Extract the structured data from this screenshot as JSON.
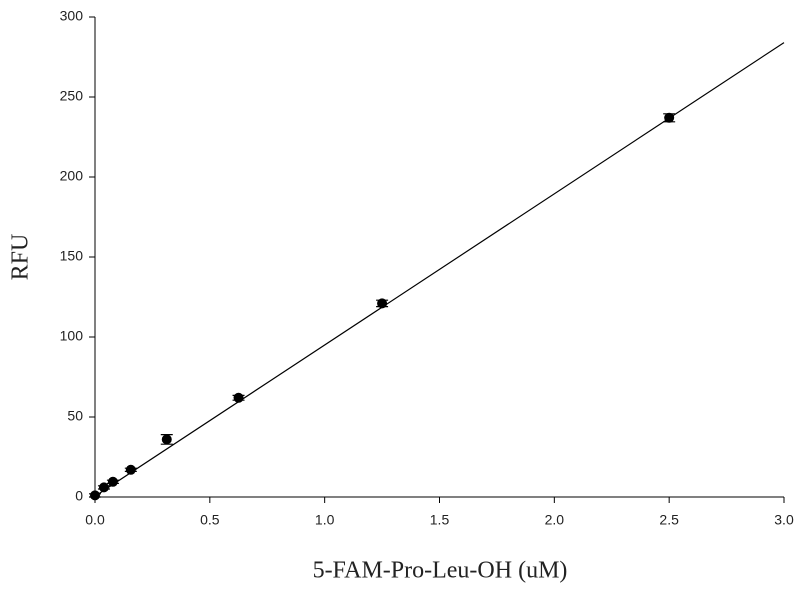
{
  "chart_data": {
    "type": "scatter",
    "xlabel": "5-FAM-Pro-Leu-OH (uM)",
    "ylabel": "RFU",
    "x": [
      0,
      0.039,
      0.078,
      0.156,
      0.3125,
      0.625,
      1.25,
      2.5
    ],
    "values": [
      1,
      6,
      9.5,
      17,
      36,
      62,
      121,
      237
    ],
    "errors": [
      1,
      1,
      1,
      1,
      3,
      1.5,
      2,
      2.5
    ],
    "color": "#000000",
    "fit_line": {
      "x": [
        0,
        3
      ],
      "values": [
        0.5,
        284
      ]
    },
    "xlim": [
      0,
      3
    ],
    "ylim": [
      0,
      300
    ],
    "xticks": [
      {
        "value": 0,
        "label": "0.0"
      },
      0.5,
      {
        "value": 1,
        "label": "1.0"
      },
      1.5,
      {
        "value": 2,
        "label": "2.0"
      },
      2.5,
      {
        "value": 3,
        "label": "3.0"
      }
    ],
    "yticks": [
      0,
      50,
      100,
      150,
      200,
      250,
      300
    ]
  }
}
